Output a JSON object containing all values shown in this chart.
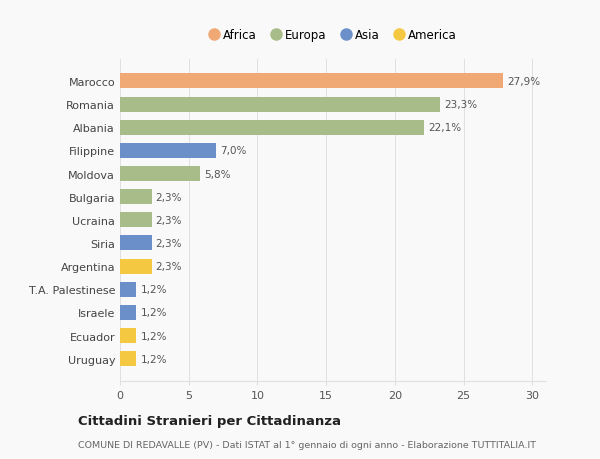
{
  "categories": [
    "Uruguay",
    "Ecuador",
    "Israele",
    "T.A. Palestinese",
    "Argentina",
    "Siria",
    "Ucraina",
    "Bulgaria",
    "Moldova",
    "Filippine",
    "Albania",
    "Romania",
    "Marocco"
  ],
  "values": [
    1.2,
    1.2,
    1.2,
    1.2,
    2.3,
    2.3,
    2.3,
    2.3,
    5.8,
    7.0,
    22.1,
    23.3,
    27.9
  ],
  "labels": [
    "1,2%",
    "1,2%",
    "1,2%",
    "1,2%",
    "2,3%",
    "2,3%",
    "2,3%",
    "2,3%",
    "5,8%",
    "7,0%",
    "22,1%",
    "23,3%",
    "27,9%"
  ],
  "colors": [
    "#f5c842",
    "#f5c842",
    "#6b8fc9",
    "#6b8fc9",
    "#f5c842",
    "#6b8fc9",
    "#a8bc8a",
    "#a8bc8a",
    "#a8bc8a",
    "#6b8fc9",
    "#a8bc8a",
    "#a8bc8a",
    "#f0a875"
  ],
  "legend_labels": [
    "Africa",
    "Europa",
    "Asia",
    "America"
  ],
  "legend_colors": [
    "#f0a875",
    "#a8bc8a",
    "#6b8fc9",
    "#f5c842"
  ],
  "title": "Cittadini Stranieri per Cittadinanza",
  "subtitle": "COMUNE DI REDAVALLE (PV) - Dati ISTAT al 1° gennaio di ogni anno - Elaborazione TUTTITALIA.IT",
  "xlim": [
    0,
    31
  ],
  "xticks": [
    0,
    5,
    10,
    15,
    20,
    25,
    30
  ],
  "background_color": "#f9f9f9",
  "grid_color": "#e0e0e0"
}
